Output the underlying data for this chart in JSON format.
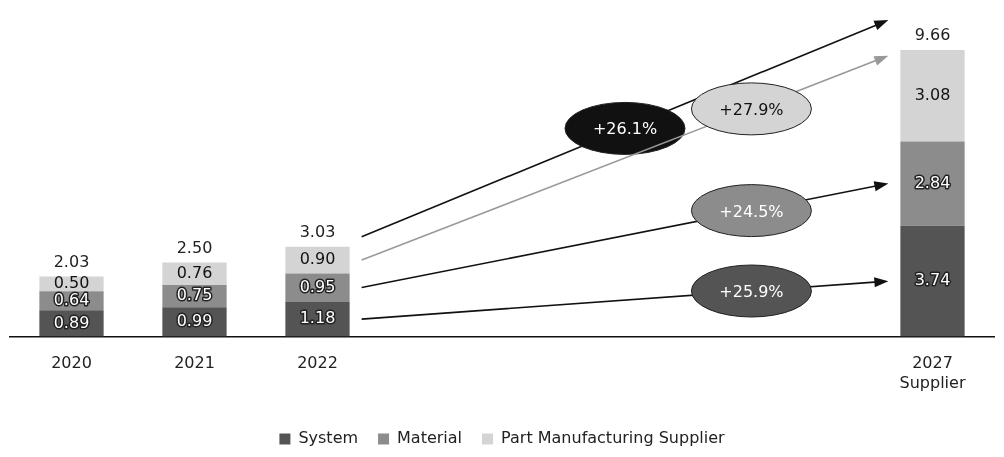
{
  "chart_data": {
    "type": "bar",
    "stacked": true,
    "categories": [
      "2020",
      "2021",
      "2022",
      null,
      null,
      null,
      null,
      "2027 Supplier"
    ],
    "series": [
      {
        "name": "System",
        "color": "#545454",
        "values": [
          0.89,
          0.99,
          1.18,
          null,
          null,
          null,
          null,
          3.74
        ],
        "value_labels": [
          "0.89",
          "0.99",
          "1.18",
          null,
          null,
          null,
          null,
          "3.74"
        ]
      },
      {
        "name": "Material",
        "color": "#8c8c8c",
        "values": [
          0.64,
          0.75,
          0.95,
          null,
          null,
          null,
          null,
          2.84
        ],
        "value_labels": [
          "0.64",
          "0.75",
          "0.95",
          null,
          null,
          null,
          null,
          "2.84"
        ]
      },
      {
        "name": "Part Manufacturing Supplier",
        "color": "#d4d4d4",
        "values": [
          0.5,
          0.76,
          0.9,
          null,
          null,
          null,
          null,
          3.08
        ],
        "value_labels": [
          "0.50",
          "0.76",
          "0.90",
          null,
          null,
          null,
          null,
          "3.08"
        ]
      }
    ],
    "totals": [
      "2.03",
      "2.50",
      "3.03",
      null,
      null,
      null,
      null,
      "9.66"
    ],
    "annotations": [
      "+26.1%",
      "+27.9%",
      "+24.5%",
      "+25.9%"
    ],
    "legend": "bottom",
    "grid": false,
    "tick_labels": "x"
  }
}
